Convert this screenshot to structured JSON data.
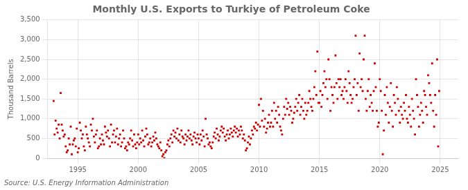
{
  "chart_data": {
    "type": "scatter",
    "title": "Monthly U.S. Exports to Turkiye of Petroleum Coke",
    "ylabel": "Thousand Barrels",
    "annotation": "Source: U.S. Energy Information Administration",
    "color": "#CC0000",
    "marker": "square",
    "grid": true,
    "xlim": [
      1992.5,
      2026.5
    ],
    "xticks": [
      1995,
      2000,
      2005,
      2010,
      2015,
      2020,
      2025
    ],
    "ylim": [
      0,
      3500
    ],
    "yticks": [
      0,
      500,
      {
        "value": 1000,
        "label": "1,000"
      },
      {
        "value": 1500,
        "label": "1,500"
      },
      {
        "value": 2000,
        "label": "2,000"
      },
      {
        "value": 2500,
        "label": "2,500"
      },
      {
        "value": 3000,
        "label": "3,000"
      },
      {
        "value": 3500,
        "label": "3,500"
      }
    ],
    "x": [
      1993.0,
      1993.083,
      1993.167,
      1993.25,
      1993.333,
      1993.417,
      1993.5,
      1993.583,
      1993.667,
      1993.75,
      1993.833,
      1993.917,
      1994.0,
      1994.083,
      1994.167,
      1994.25,
      1994.333,
      1994.417,
      1994.5,
      1994.583,
      1994.667,
      1994.75,
      1994.833,
      1994.917,
      1995.0,
      1995.083,
      1995.167,
      1995.25,
      1995.333,
      1995.417,
      1995.5,
      1995.583,
      1995.667,
      1995.75,
      1995.833,
      1995.917,
      1996.0,
      1996.083,
      1996.167,
      1996.25,
      1996.333,
      1996.417,
      1996.5,
      1996.583,
      1996.667,
      1996.75,
      1996.833,
      1996.917,
      1997.0,
      1997.083,
      1997.167,
      1997.25,
      1997.333,
      1997.417,
      1997.5,
      1997.583,
      1997.667,
      1997.75,
      1997.833,
      1997.917,
      1998.0,
      1998.083,
      1998.167,
      1998.25,
      1998.333,
      1998.417,
      1998.5,
      1998.583,
      1998.667,
      1998.75,
      1998.833,
      1998.917,
      1999.0,
      1999.083,
      1999.167,
      1999.25,
      1999.333,
      1999.417,
      1999.5,
      1999.583,
      1999.667,
      1999.75,
      1999.833,
      1999.917,
      2000.0,
      2000.083,
      2000.167,
      2000.25,
      2000.333,
      2000.417,
      2000.5,
      2000.583,
      2000.667,
      2000.75,
      2000.833,
      2000.917,
      2001.0,
      2001.083,
      2001.167,
      2001.25,
      2001.333,
      2001.417,
      2001.5,
      2001.583,
      2001.667,
      2001.75,
      2001.833,
      2001.917,
      2002.0,
      2002.083,
      2002.167,
      2002.25,
      2002.333,
      2002.417,
      2002.5,
      2002.583,
      2002.667,
      2002.75,
      2002.833,
      2002.917,
      2003.0,
      2003.083,
      2003.167,
      2003.25,
      2003.333,
      2003.417,
      2003.5,
      2003.583,
      2003.667,
      2003.75,
      2003.833,
      2003.917,
      2004.0,
      2004.083,
      2004.167,
      2004.25,
      2004.333,
      2004.417,
      2004.5,
      2004.583,
      2004.667,
      2004.75,
      2004.833,
      2004.917,
      2005.0,
      2005.083,
      2005.167,
      2005.25,
      2005.333,
      2005.417,
      2005.5,
      2005.583,
      2005.667,
      2005.75,
      2005.833,
      2005.917,
      2006.0,
      2006.083,
      2006.167,
      2006.25,
      2006.333,
      2006.417,
      2006.5,
      2006.583,
      2006.667,
      2006.75,
      2006.833,
      2006.917,
      2007.0,
      2007.083,
      2007.167,
      2007.25,
      2007.333,
      2007.417,
      2007.5,
      2007.583,
      2007.667,
      2007.75,
      2007.833,
      2007.917,
      2008.0,
      2008.083,
      2008.167,
      2008.25,
      2008.333,
      2008.417,
      2008.5,
      2008.583,
      2008.667,
      2008.75,
      2008.833,
      2008.917,
      2009.0,
      2009.083,
      2009.167,
      2009.25,
      2009.333,
      2009.417,
      2009.5,
      2009.583,
      2009.667,
      2009.75,
      2009.833,
      2009.917,
      2010.0,
      2010.083,
      2010.167,
      2010.25,
      2010.333,
      2010.417,
      2010.5,
      2010.583,
      2010.667,
      2010.75,
      2010.833,
      2010.917,
      2011.0,
      2011.083,
      2011.167,
      2011.25,
      2011.333,
      2011.417,
      2011.5,
      2011.583,
      2011.667,
      2011.75,
      2011.833,
      2011.917,
      2012.0,
      2012.083,
      2012.167,
      2012.25,
      2012.333,
      2012.417,
      2012.5,
      2012.583,
      2012.667,
      2012.75,
      2012.833,
      2012.917,
      2013.0,
      2013.083,
      2013.167,
      2013.25,
      2013.333,
      2013.417,
      2013.5,
      2013.583,
      2013.667,
      2013.75,
      2013.833,
      2013.917,
      2014.0,
      2014.083,
      2014.167,
      2014.25,
      2014.333,
      2014.417,
      2014.5,
      2014.583,
      2014.667,
      2014.75,
      2014.833,
      2014.917,
      2015.0,
      2015.083,
      2015.167,
      2015.25,
      2015.333,
      2015.417,
      2015.5,
      2015.583,
      2015.667,
      2015.75,
      2015.833,
      2015.917,
      2016.0,
      2016.083,
      2016.167,
      2016.25,
      2016.333,
      2016.417,
      2016.5,
      2016.583,
      2016.667,
      2016.75,
      2016.833,
      2016.917,
      2017.0,
      2017.083,
      2017.167,
      2017.25,
      2017.333,
      2017.417,
      2017.5,
      2017.583,
      2017.667,
      2017.75,
      2017.833,
      2017.917,
      2018.0,
      2018.083,
      2018.167,
      2018.25,
      2018.333,
      2018.417,
      2018.5,
      2018.583,
      2018.667,
      2018.75,
      2018.833,
      2018.917,
      2019.0,
      2019.083,
      2019.167,
      2019.25,
      2019.333,
      2019.417,
      2019.5,
      2019.583,
      2019.667,
      2019.75,
      2019.833,
      2019.917,
      2020.0,
      2020.083,
      2020.167,
      2020.25,
      2020.333,
      2020.417,
      2020.5,
      2020.583,
      2020.667,
      2020.75,
      2020.833,
      2020.917,
      2021.0,
      2021.083,
      2021.167,
      2021.25,
      2021.333,
      2021.417,
      2021.5,
      2021.583,
      2021.667,
      2021.75,
      2021.833,
      2021.917,
      2022.0,
      2022.083,
      2022.167,
      2022.25,
      2022.333,
      2022.417,
      2022.5,
      2022.583,
      2022.667,
      2022.75,
      2022.833,
      2022.917,
      2023.0,
      2023.083,
      2023.167,
      2023.25,
      2023.333,
      2023.417,
      2023.5,
      2023.583,
      2023.667,
      2023.75,
      2023.833,
      2023.917,
      2024.0,
      2024.083,
      2024.167,
      2024.25,
      2024.333,
      2024.417,
      2024.5,
      2024.583,
      2024.667,
      2024.75,
      2024.833,
      2024.917
    ],
    "values": [
      1450,
      600,
      950,
      750,
      650,
      850,
      500,
      1650,
      850,
      700,
      550,
      600,
      300,
      150,
      200,
      500,
      350,
      800,
      100,
      350,
      450,
      500,
      300,
      750,
      150,
      250,
      900,
      700,
      500,
      600,
      300,
      200,
      800,
      600,
      500,
      400,
      300,
      850,
      700,
      1000,
      550,
      400,
      600,
      700,
      250,
      300,
      500,
      350,
      600,
      450,
      350,
      800,
      650,
      550,
      700,
      500,
      300,
      850,
      400,
      600,
      700,
      400,
      550,
      750,
      350,
      500,
      600,
      300,
      400,
      700,
      500,
      250,
      300,
      200,
      400,
      350,
      500,
      700,
      450,
      300,
      600,
      350,
      250,
      400,
      600,
      350,
      500,
      400,
      700,
      450,
      300,
      550,
      750,
      600,
      350,
      400,
      500,
      300,
      400,
      550,
      450,
      650,
      500,
      350,
      300,
      250,
      400,
      200,
      50,
      100,
      0,
      150,
      200,
      350,
      450,
      300,
      500,
      600,
      400,
      700,
      550,
      650,
      500,
      750,
      450,
      600,
      400,
      700,
      550,
      500,
      350,
      600,
      450,
      550,
      700,
      500,
      600,
      450,
      350,
      550,
      650,
      500,
      400,
      600,
      500,
      350,
      600,
      450,
      700,
      550,
      300,
      1000,
      600,
      500,
      350,
      400,
      300,
      250,
      400,
      550,
      650,
      500,
      750,
      600,
      450,
      550,
      700,
      800,
      650,
      750,
      550,
      450,
      600,
      700,
      500,
      600,
      750,
      650,
      550,
      700,
      800,
      650,
      750,
      550,
      700,
      600,
      800,
      700,
      500,
      600,
      450,
      200,
      250,
      400,
      550,
      350,
      500,
      700,
      600,
      800,
      750,
      900,
      700,
      850,
      1350,
      800,
      1500,
      950,
      1200,
      800,
      1000,
      650,
      750,
      900,
      1100,
      800,
      900,
      1200,
      800,
      1400,
      1000,
      1200,
      900,
      1300,
      1100,
      800,
      700,
      600,
      1000,
      1300,
      1100,
      1500,
      1250,
      1400,
      1100,
      1300,
      1200,
      900,
      1000,
      1150,
      1300,
      1500,
      1200,
      1400,
      1600,
      1100,
      1300,
      1500,
      1200,
      1000,
      1400,
      1100,
      1200,
      1400,
      1700,
      1500,
      1300,
      1200,
      1500,
      1800,
      2200,
      1600,
      2700,
      1400,
      1400,
      1700,
      1300,
      1600,
      1900,
      2200,
      1800,
      2000,
      1500,
      2500,
      2000,
      1200,
      1800,
      1600,
      1400,
      1800,
      2600,
      1900,
      1500,
      2000,
      1800,
      2000,
      1600,
      1700,
      1500,
      1800,
      2000,
      1700,
      1400,
      2200,
      1900,
      1600,
      1400,
      1500,
      1800,
      2000,
      3100,
      1600,
      1900,
      1200,
      2650,
      1800,
      2000,
      1700,
      2500,
      3100,
      1500,
      1200,
      1700,
      2000,
      1300,
      1600,
      1400,
      1200,
      1700,
      2400,
      1800,
      1200,
      800,
      900,
      2000,
      1700,
      1200,
      100,
      700,
      1600,
      1100,
      1800,
      1400,
      900,
      1300,
      1900,
      1200,
      800,
      1600,
      1400,
      1100,
      1800,
      1500,
      1200,
      900,
      1300,
      1100,
      1000,
      1400,
      1200,
      1600,
      1000,
      900,
      1300,
      1100,
      800,
      1500,
      1200,
      1000,
      600,
      2000,
      1600,
      1300,
      800,
      1100,
      1400,
      1200,
      900,
      1700,
      1600,
      1300,
      1100,
      2100,
      1900,
      1600,
      1400,
      2400,
      1200,
      800,
      1600,
      1100,
      2500,
      300,
      1700
    ]
  }
}
